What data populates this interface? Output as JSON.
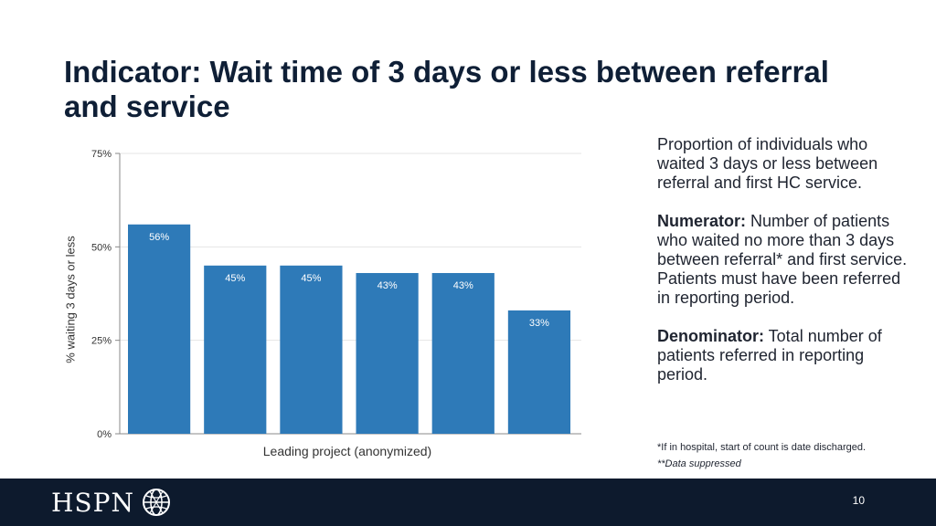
{
  "slide": {
    "title": "Indicator: Wait time of 3 days or less between referral and service",
    "page_number": "10"
  },
  "side_panel": {
    "description": "Proportion of individuals who waited 3 days or less between referral and first HC service.",
    "numerator_label": "Numerator:",
    "numerator_text": " Number of patients who waited no more than 3 days between referral* and first service. Patients must have been referred in reporting period.",
    "denominator_label": "Denominator:",
    "denominator_text": " Total number of patients referred in reporting period."
  },
  "footnotes": {
    "note1": "*If in hospital, start of count is date discharged.",
    "note2": "**Data suppressed"
  },
  "logo": {
    "text": "HSPN"
  },
  "chart_data": {
    "type": "bar",
    "xlabel": "Leading project (anonymized)",
    "ylabel": "% waiting 3 days or less",
    "ylim": [
      0,
      75
    ],
    "yticks": [
      "0%",
      "25%",
      "50%",
      "75%"
    ],
    "ytick_values": [
      0,
      25,
      50,
      75
    ],
    "values": [
      56,
      45,
      45,
      43,
      43,
      33
    ],
    "data_labels": [
      "56%",
      "45%",
      "45%",
      "43%",
      "43%",
      "33%"
    ],
    "bar_color": "#2e7ab8",
    "grid": "horizontal",
    "legend": "none"
  }
}
